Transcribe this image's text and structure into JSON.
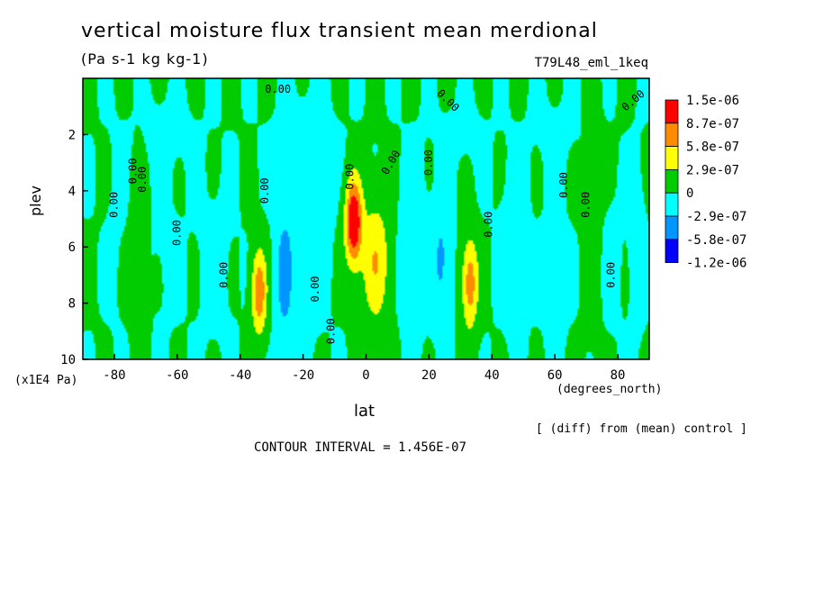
{
  "chart_data": {
    "type": "heatmap",
    "title": "vertical moisture flux transient mean merdional",
    "units": "(Pa s-1 kg kg-1)",
    "run_id": "T79L48_eml_1keq",
    "xlabel": "lat",
    "x_units": "(degrees_north)",
    "ylabel": "plev",
    "y_units": "(x1E4 Pa)",
    "xlim": [
      -90,
      90
    ],
    "ylim": [
      10,
      0
    ],
    "x_ticks": [
      "-80",
      "-60",
      "-40",
      "-20",
      "0",
      "20",
      "40",
      "60",
      "80"
    ],
    "x_tick_values": [
      -80,
      -60,
      -40,
      -20,
      0,
      20,
      40,
      60,
      80
    ],
    "y_ticks": [
      "2",
      "4",
      "6",
      "8",
      "10"
    ],
    "y_tick_values": [
      2,
      4,
      6,
      8,
      10
    ],
    "note": "[ (diff) from (mean) control ]",
    "contour_interval": "CONTOUR INTERVAL = 1.456E-07",
    "legend": {
      "labels": [
        "1.5e-06",
        "8.7e-07",
        "5.8e-07",
        "2.9e-07",
        "0",
        "-2.9e-07",
        "-5.8e-07",
        "-1.2e-06"
      ],
      "colors": [
        "#ff0000",
        "#ff8c00",
        "#ffff00",
        "#00cc00",
        "#00ffff",
        "#0096ff",
        "#0000ff"
      ]
    },
    "levels": [
      -2.9e-07,
      0,
      2.9e-07,
      5.8e-07,
      8.7e-07
    ],
    "background_value": 1e-08,
    "features": [
      {
        "lat": -80,
        "plev": 5.5,
        "value": -5e-08,
        "wlat": 3,
        "wp": 3.5
      },
      {
        "lat": -64,
        "plev": 6.0,
        "value": -6e-08,
        "wlat": 5,
        "wp": 3.0
      },
      {
        "lat": -48,
        "plev": 6.5,
        "value": -8e-08,
        "wlat": 6,
        "wp": 3.0
      },
      {
        "lat": -34,
        "plev": 7.6,
        "value": 8e-07,
        "wlat": 2.4,
        "wp": 1.5
      },
      {
        "lat": -26,
        "plev": 7.0,
        "value": -4e-07,
        "wlat": 3,
        "wp": 2.5
      },
      {
        "lat": -18,
        "plev": 5.0,
        "value": -1.5e-07,
        "wlat": 6,
        "wp": 3.5
      },
      {
        "lat": -4,
        "plev": 5.1,
        "value": 1.2e-06,
        "wlat": 2.6,
        "wp": 1.5
      },
      {
        "lat": 3,
        "plev": 6.5,
        "value": 5.5e-07,
        "wlat": 4.5,
        "wp": 2.2
      },
      {
        "lat": 15,
        "plev": 6.0,
        "value": -1.5e-07,
        "wlat": 5,
        "wp": 3.0
      },
      {
        "lat": 24,
        "plev": 6.5,
        "value": -3.5e-07,
        "wlat": 3,
        "wp": 2.2
      },
      {
        "lat": 33,
        "plev": 7.3,
        "value": 7.5e-07,
        "wlat": 2.6,
        "wp": 1.6
      },
      {
        "lat": 47,
        "plev": 6.0,
        "value": -1.2e-07,
        "wlat": 5,
        "wp": 3.0
      },
      {
        "lat": 60,
        "plev": 7.0,
        "value": -1.2e-07,
        "wlat": 4,
        "wp": 2.5
      },
      {
        "lat": 78,
        "plev": 6.5,
        "value": -8e-08,
        "wlat": 3.5,
        "wp": 2.5
      },
      {
        "lat": 86,
        "plev": 6.0,
        "value": -1.5e-07,
        "wlat": 2.5,
        "wp": 3.0
      },
      {
        "lat": -65,
        "plev": 2.0,
        "value": -8e-08,
        "wlat": 10,
        "wp": 1.3
      },
      {
        "lat": -20,
        "plev": 2.5,
        "value": -1e-07,
        "wlat": 10,
        "wp": 1.5
      },
      {
        "lat": 30,
        "plev": 2.0,
        "value": -7e-08,
        "wlat": 8,
        "wp": 1.2
      },
      {
        "lat": 60,
        "plev": 2.0,
        "value": -6e-08,
        "wlat": 8,
        "wp": 1.5
      },
      {
        "lat": -72,
        "plev": 6.0,
        "value": 1.2e-07,
        "wlat": 2.5,
        "wp": 4.0
      },
      {
        "lat": 72,
        "plev": 5.5,
        "value": 1e-07,
        "wlat": 3,
        "wp": 4.0
      }
    ],
    "contour_labels": [
      {
        "text": "0.00",
        "lat": -28,
        "plev": 0.4,
        "rot": 0
      },
      {
        "text": "0.00",
        "lat": -80,
        "plev": 4.5,
        "rot": -90
      },
      {
        "text": "0.00",
        "lat": -74,
        "plev": 3.3,
        "rot": -90
      },
      {
        "text": "0.00",
        "lat": -71,
        "plev": 3.6,
        "rot": -90
      },
      {
        "text": "0.00",
        "lat": -60,
        "plev": 5.5,
        "rot": -90
      },
      {
        "text": "0.00",
        "lat": -45,
        "plev": 7.0,
        "rot": -90
      },
      {
        "text": "0.00",
        "lat": -32,
        "plev": 4.0,
        "rot": -90
      },
      {
        "text": "0.00",
        "lat": -16,
        "plev": 7.5,
        "rot": -90
      },
      {
        "text": "0.00",
        "lat": -11,
        "plev": 9.0,
        "rot": -90
      },
      {
        "text": "0.00",
        "lat": -5,
        "plev": 3.5,
        "rot": -90
      },
      {
        "text": "0.00",
        "lat": 8,
        "plev": 3.0,
        "rot": -60
      },
      {
        "text": "0.00",
        "lat": 20,
        "plev": 3.0,
        "rot": -90
      },
      {
        "text": "0.00",
        "lat": 26,
        "plev": 0.8,
        "rot": 45
      },
      {
        "text": "0.00",
        "lat": 39,
        "plev": 5.2,
        "rot": -90
      },
      {
        "text": "0.00",
        "lat": 63,
        "plev": 3.8,
        "rot": -90
      },
      {
        "text": "0.00",
        "lat": 70,
        "plev": 4.5,
        "rot": -90
      },
      {
        "text": "0.00",
        "lat": 85,
        "plev": 0.8,
        "rot": -40
      },
      {
        "text": "0.00",
        "lat": 78,
        "plev": 7.0,
        "rot": -90
      }
    ]
  }
}
